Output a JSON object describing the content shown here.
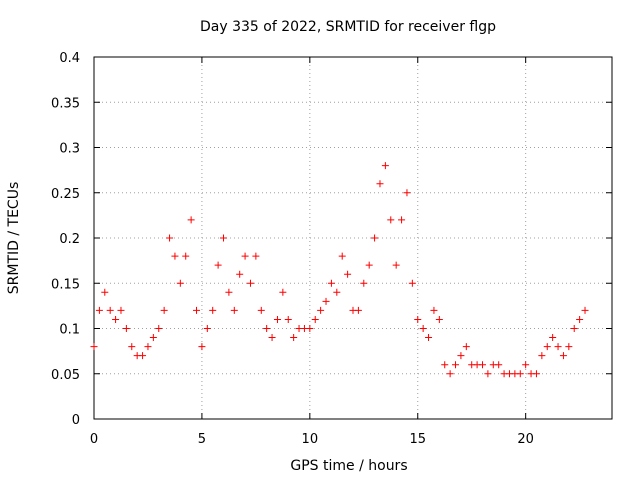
{
  "chart_data": {
    "type": "scatter",
    "title": "Day 335 of 2022, SRMTID for receiver flgp",
    "xlabel": "GPS time / hours",
    "ylabel": "SRMTID / TECUs",
    "xlim": [
      0,
      24
    ],
    "ylim": [
      0,
      0.4
    ],
    "x_ticks": [
      0,
      5,
      10,
      15,
      20
    ],
    "x_tick_labels": [
      "0",
      "5",
      "10",
      "15",
      "20"
    ],
    "y_ticks": [
      0,
      0.05,
      0.1,
      0.15,
      0.2,
      0.25,
      0.3,
      0.35,
      0.4
    ],
    "y_tick_labels": [
      "0",
      "0.05",
      "0.1",
      "0.15",
      "0.2",
      "0.25",
      "0.3",
      "0.35",
      "0.4"
    ],
    "grid": true,
    "marker": "plus",
    "color": "#ff0000",
    "series": [
      {
        "x": [
          0.0,
          0.25,
          0.5,
          0.75,
          1.0,
          1.25,
          1.5,
          1.75,
          2.0,
          2.25,
          2.5,
          2.75,
          3.0,
          3.25,
          3.5,
          3.75,
          4.0,
          4.25,
          4.5,
          4.75,
          5.0,
          5.25,
          5.5,
          5.75,
          6.0,
          6.25,
          6.5,
          6.75,
          7.0,
          7.25,
          7.5,
          7.75,
          8.0,
          8.25,
          8.5,
          8.75,
          9.0,
          9.25,
          9.5,
          9.75,
          10.0,
          10.25,
          10.5,
          10.75,
          11.0,
          11.25,
          11.5,
          11.75,
          12.0,
          12.25,
          12.5,
          12.75,
          13.0,
          13.25,
          13.5,
          13.75,
          14.0,
          14.25,
          14.5,
          14.75,
          15.0,
          15.25,
          15.5,
          15.75,
          16.0,
          16.25,
          16.5,
          16.75,
          17.0,
          17.25,
          17.5,
          17.75,
          18.0,
          18.25,
          18.5,
          18.75,
          19.0,
          19.25,
          19.5,
          19.75,
          20.0,
          20.25,
          20.5,
          20.75,
          21.0,
          21.25,
          21.5,
          21.75,
          22.0,
          22.25,
          22.5,
          22.75
        ],
        "y": [
          0.08,
          0.12,
          0.14,
          0.12,
          0.11,
          0.12,
          0.1,
          0.08,
          0.07,
          0.07,
          0.08,
          0.09,
          0.1,
          0.12,
          0.2,
          0.18,
          0.15,
          0.18,
          0.22,
          0.12,
          0.08,
          0.1,
          0.12,
          0.17,
          0.2,
          0.14,
          0.12,
          0.16,
          0.18,
          0.15,
          0.18,
          0.12,
          0.1,
          0.09,
          0.11,
          0.14,
          0.11,
          0.09,
          0.1,
          0.1,
          0.1,
          0.11,
          0.12,
          0.13,
          0.15,
          0.14,
          0.18,
          0.16,
          0.12,
          0.12,
          0.15,
          0.17,
          0.2,
          0.26,
          0.28,
          0.22,
          0.17,
          0.22,
          0.25,
          0.15,
          0.11,
          0.1,
          0.09,
          0.12,
          0.11,
          0.06,
          0.05,
          0.06,
          0.07,
          0.08,
          0.06,
          0.06,
          0.06,
          0.05,
          0.06,
          0.06,
          0.05,
          0.05,
          0.05,
          0.05,
          0.06,
          0.05,
          0.05,
          0.07,
          0.08,
          0.09,
          0.08,
          0.07,
          0.08,
          0.1,
          0.11,
          0.12
        ]
      }
    ]
  }
}
